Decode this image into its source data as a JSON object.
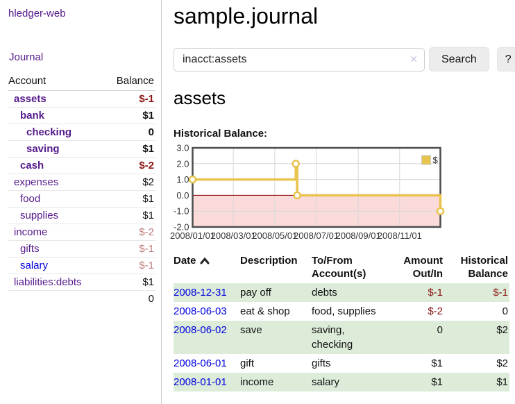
{
  "sidebar": {
    "brand": "hledger-web",
    "journal_link": "Journal",
    "accounts_table": {
      "headers": {
        "account": "Account",
        "balance": "Balance"
      },
      "rows": [
        {
          "name": "assets",
          "balance": "$-1"
        },
        {
          "name": "bank",
          "balance": "$1"
        },
        {
          "name": "checking",
          "balance": "0"
        },
        {
          "name": "saving",
          "balance": "$1"
        },
        {
          "name": "cash",
          "balance": "$-2"
        },
        {
          "name": "expenses",
          "balance": "$2"
        },
        {
          "name": "food",
          "balance": "$1"
        },
        {
          "name": "supplies",
          "balance": "$1"
        },
        {
          "name": "income",
          "balance": "$-2"
        },
        {
          "name": "gifts",
          "balance": "$-1"
        },
        {
          "name": "salary",
          "balance": "$-1"
        },
        {
          "name": "liabilities:debts",
          "balance": "$1"
        }
      ],
      "total": "0"
    }
  },
  "header": {
    "title": "sample.journal"
  },
  "search": {
    "value": "inacct:assets",
    "clear_icon": "✕",
    "button_label": "Search",
    "help_label": "?"
  },
  "account_page": {
    "heading": "assets",
    "chart_label": "Historical Balance:"
  },
  "chart_data": {
    "type": "line",
    "step": true,
    "legend": [
      {
        "label": "$",
        "color": "#e8c34e"
      }
    ],
    "series": [
      {
        "name": "$",
        "points": [
          [
            "2008-01-01",
            1
          ],
          [
            "2008-06-01",
            2
          ],
          [
            "2008-06-03",
            0
          ],
          [
            "2008-12-31",
            -1
          ]
        ]
      }
    ],
    "x_range": [
      "2008-01-01",
      "2008-12-31"
    ],
    "x_ticks": [
      "2008/01/01",
      "2008/03/01",
      "2008/05/01",
      "2008/07/01",
      "2008/09/01",
      "2008/11/01"
    ],
    "y_ticks": [
      -2,
      -1,
      0,
      1,
      2,
      3
    ],
    "ylim": [
      -2,
      3
    ],
    "colors": {
      "line": "#e8c34e",
      "marker_fill": "#ffffff",
      "grid": "#d8d8d8",
      "frame": "#4d4d4d",
      "negative_region": "#fbdada",
      "zero_line": "#8b0000",
      "tick_text": "#333333"
    }
  },
  "register": {
    "headers": {
      "date": "Date",
      "description": "Description",
      "accounts": "To/From Account(s)",
      "amount": "Amount Out/In",
      "balance": "Historical Balance"
    },
    "rows": [
      {
        "date": "2008-12-31",
        "description": "pay off",
        "accounts": "debts",
        "amount": "$-1",
        "balance": "$-1"
      },
      {
        "date": "2008-06-03",
        "description": "eat & shop",
        "accounts": "food, supplies",
        "amount": "$-2",
        "balance": "0"
      },
      {
        "date": "2008-06-02",
        "description": "save",
        "accounts": "saving, checking",
        "amount": "0",
        "balance": "$2"
      },
      {
        "date": "2008-06-01",
        "description": "gift",
        "accounts": "gifts",
        "amount": "$1",
        "balance": "$2"
      },
      {
        "date": "2008-01-01",
        "description": "income",
        "accounts": "salary",
        "amount": "$1",
        "balance": "$1"
      }
    ]
  }
}
